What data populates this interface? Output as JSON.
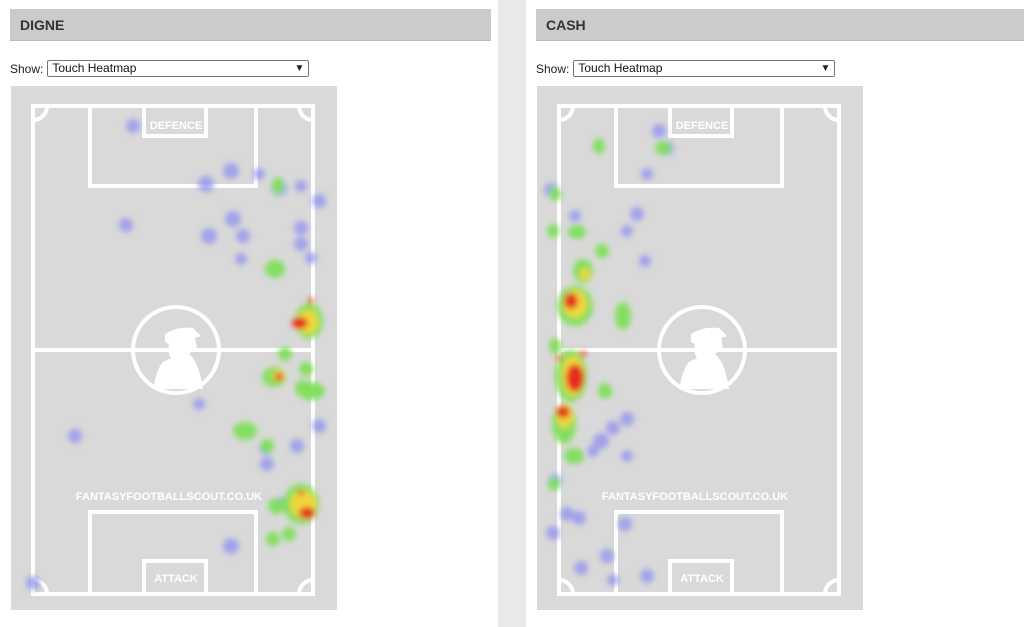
{
  "players": [
    {
      "name": "DIGNE",
      "show_label": "Show:",
      "selected_view": "Touch Heatmap",
      "pitch": {
        "top_label": "DEFENCE",
        "bottom_label": "ATTACK",
        "watermark": "FANTASYFOOTBALLSCOUT.CO.UK"
      }
    },
    {
      "name": "CASH",
      "show_label": "Show:",
      "selected_view": "Touch Heatmap",
      "pitch": {
        "top_label": "DEFENCE",
        "bottom_label": "ATTACK",
        "watermark": "FANTASYFOOTBALLSCOUT.CO.UK"
      }
    }
  ],
  "colors": {
    "pitch": "#d9d9d9",
    "lines": "#ffffff",
    "header_bg": "#cbcbcb",
    "heat_low": "#8f8ff0",
    "heat_mid": "#7fe05a",
    "heat_high": "#e62a1e"
  }
}
